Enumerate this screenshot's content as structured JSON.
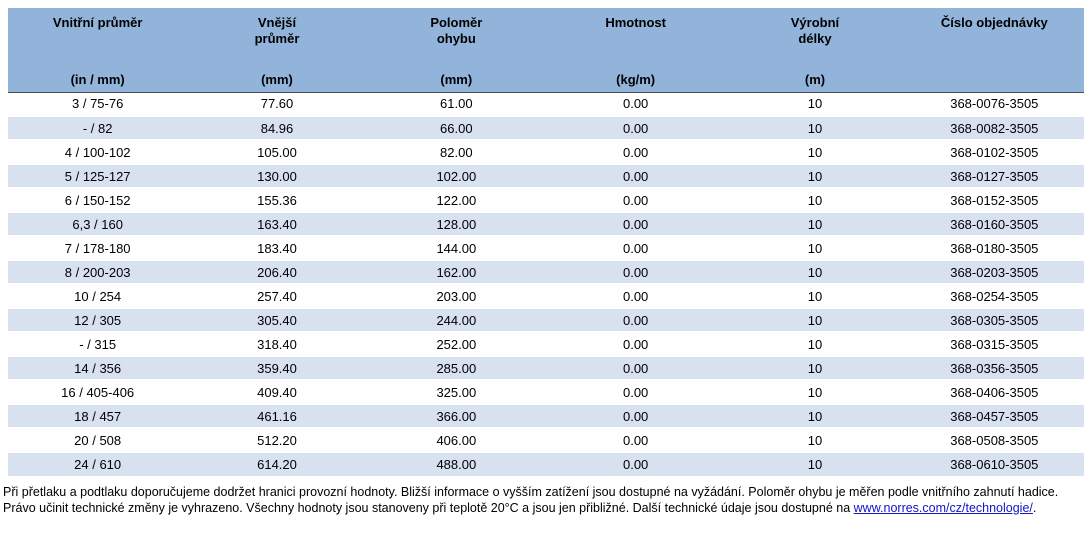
{
  "table": {
    "columns": [
      {
        "label": "Vnitřní průměr",
        "unit": "(in / mm)"
      },
      {
        "label": "Vnější\nprůměr",
        "unit": "(mm)"
      },
      {
        "label": "Poloměr\nohybu",
        "unit": "(mm)"
      },
      {
        "label": "Hmotnost",
        "unit": "(kg/m)"
      },
      {
        "label": "Výrobní\ndélky",
        "unit": "(m)"
      },
      {
        "label": "Číslo objednávky",
        "unit": ""
      }
    ],
    "rows": [
      [
        "3 / 75-76",
        "77.60",
        "61.00",
        "0.00",
        "10",
        "368-0076-3505"
      ],
      [
        "- / 82",
        "84.96",
        "66.00",
        "0.00",
        "10",
        "368-0082-3505"
      ],
      [
        "4 / 100-102",
        "105.00",
        "82.00",
        "0.00",
        "10",
        "368-0102-3505"
      ],
      [
        "5 / 125-127",
        "130.00",
        "102.00",
        "0.00",
        "10",
        "368-0127-3505"
      ],
      [
        "6 / 150-152",
        "155.36",
        "122.00",
        "0.00",
        "10",
        "368-0152-3505"
      ],
      [
        "6,3 / 160",
        "163.40",
        "128.00",
        "0.00",
        "10",
        "368-0160-3505"
      ],
      [
        "7 / 178-180",
        "183.40",
        "144.00",
        "0.00",
        "10",
        "368-0180-3505"
      ],
      [
        "8 / 200-203",
        "206.40",
        "162.00",
        "0.00",
        "10",
        "368-0203-3505"
      ],
      [
        "10 / 254",
        "257.40",
        "203.00",
        "0.00",
        "10",
        "368-0254-3505"
      ],
      [
        "12 / 305",
        "305.40",
        "244.00",
        "0.00",
        "10",
        "368-0305-3505"
      ],
      [
        "- / 315",
        "318.40",
        "252.00",
        "0.00",
        "10",
        "368-0315-3505"
      ],
      [
        "14 / 356",
        "359.40",
        "285.00",
        "0.00",
        "10",
        "368-0356-3505"
      ],
      [
        "16 / 405-406",
        "409.40",
        "325.00",
        "0.00",
        "10",
        "368-0406-3505"
      ],
      [
        "18 / 457",
        "461.16",
        "366.00",
        "0.00",
        "10",
        "368-0457-3505"
      ],
      [
        "20 / 508",
        "512.20",
        "406.00",
        "0.00",
        "10",
        "368-0508-3505"
      ],
      [
        "24 / 610",
        "614.20",
        "488.00",
        "0.00",
        "10",
        "368-0610-3505"
      ]
    ]
  },
  "footnote": {
    "text": "Při přetlaku a podtlaku doporučujeme dodržet hranici provozní hodnoty. Bližší informace o vyšším zatížení jsou dostupné na vyžádání. Poloměr ohybu je měřen podle vnitřního zahnutí hadice. Právo učinit technické změny je vyhrazeno. Všechny hodnoty jsou stanoveny při teplotě 20°C a jsou jen přibližné. Další technické údaje jsou dostupné na ",
    "link_text": "www.norres.com/cz/technologie/",
    "suffix": "."
  },
  "colors": {
    "header_bg": "#92b4da",
    "row_alt_bg": "#d7e1f0",
    "link": "#1414c8"
  }
}
